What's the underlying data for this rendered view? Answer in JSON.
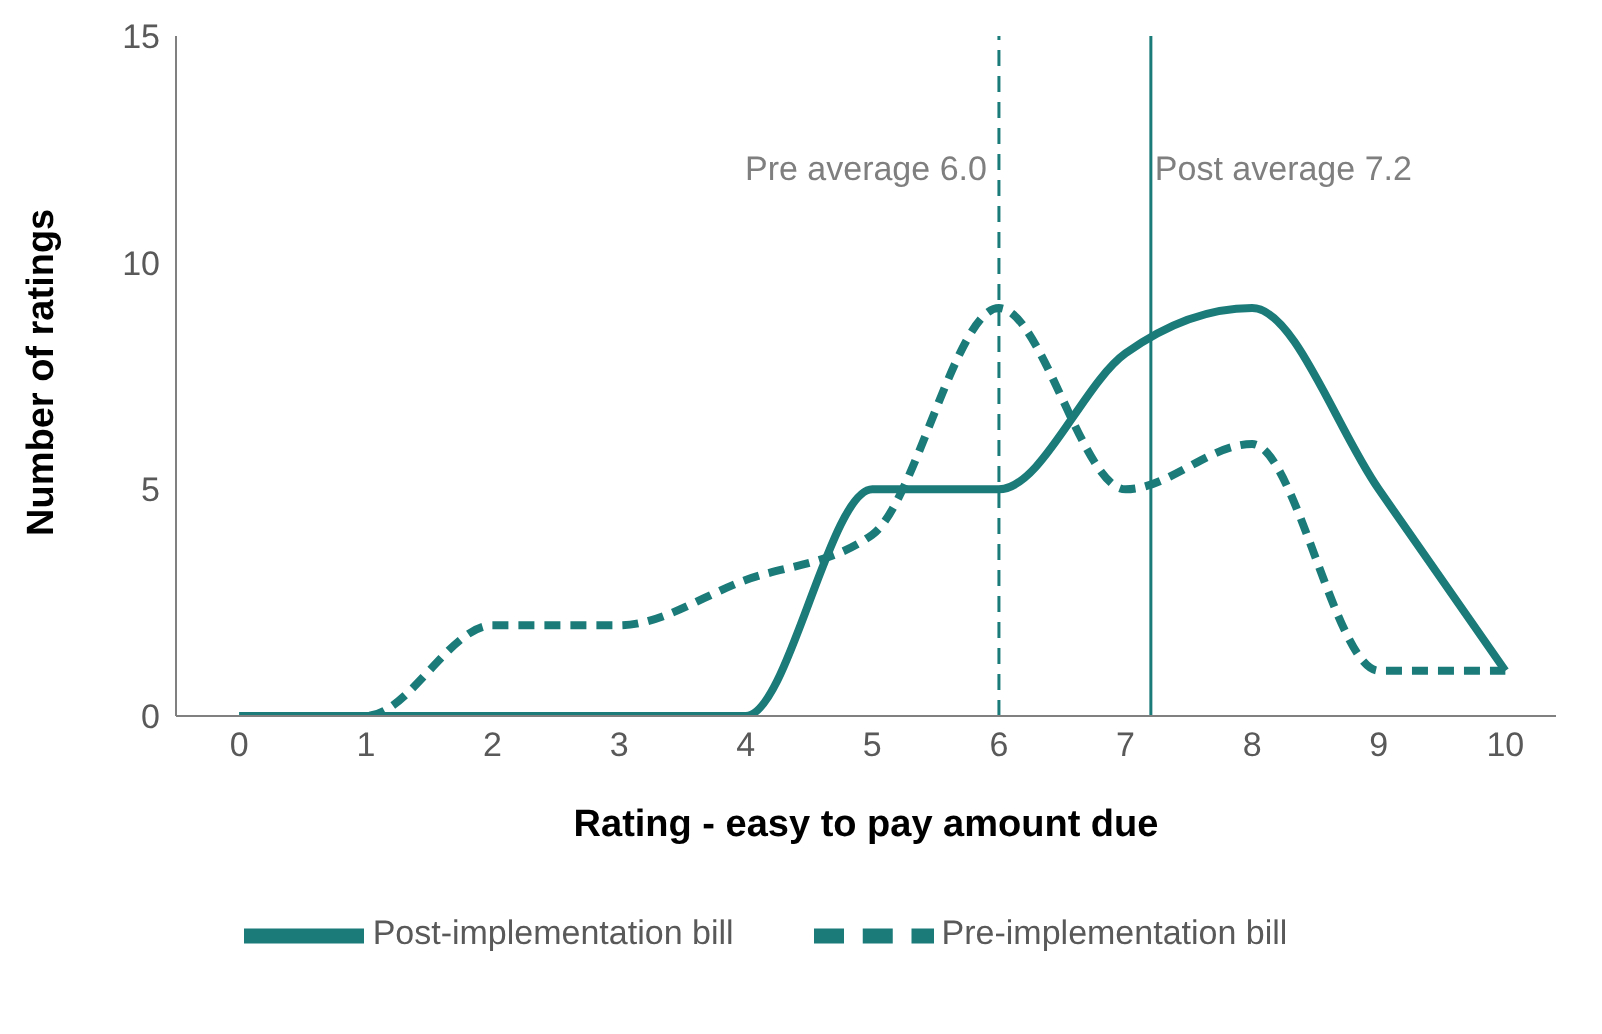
{
  "chart_data": {
    "type": "line",
    "xlabel": "Rating - easy to pay amount due",
    "ylabel": "Number of ratings",
    "x": [
      0,
      1,
      2,
      3,
      4,
      5,
      6,
      7,
      8,
      9,
      10
    ],
    "series": [
      {
        "name": "Pre-implementation bill",
        "color": "#1a7b79",
        "line_style": "dashed",
        "values": [
          0,
          0,
          2,
          2,
          3,
          4,
          9,
          5,
          6,
          1,
          1
        ]
      },
      {
        "name": "Post-implementation bill",
        "color": "#1a7b79",
        "line_style": "solid",
        "values": [
          0,
          0,
          0,
          0,
          0,
          5,
          5,
          8,
          9,
          5,
          1
        ]
      }
    ],
    "xlim": [
      -0.5,
      10.4
    ],
    "xticks": [
      0,
      1,
      2,
      3,
      4,
      5,
      6,
      7,
      8,
      9,
      10
    ],
    "ylim": [
      0,
      15
    ],
    "yticks": [
      0,
      5,
      10,
      15
    ],
    "grid": false,
    "legend": "bottom",
    "marker": "none",
    "ref_lines": [
      {
        "axis": "x",
        "value": 6.0,
        "label": "Pre average 6.0",
        "color": "#1a7b79",
        "line_style": "dashed"
      },
      {
        "axis": "x",
        "value": 7.2,
        "label": "Post average 7.2",
        "color": "#1a7b79",
        "line_style": "solid"
      }
    ]
  }
}
